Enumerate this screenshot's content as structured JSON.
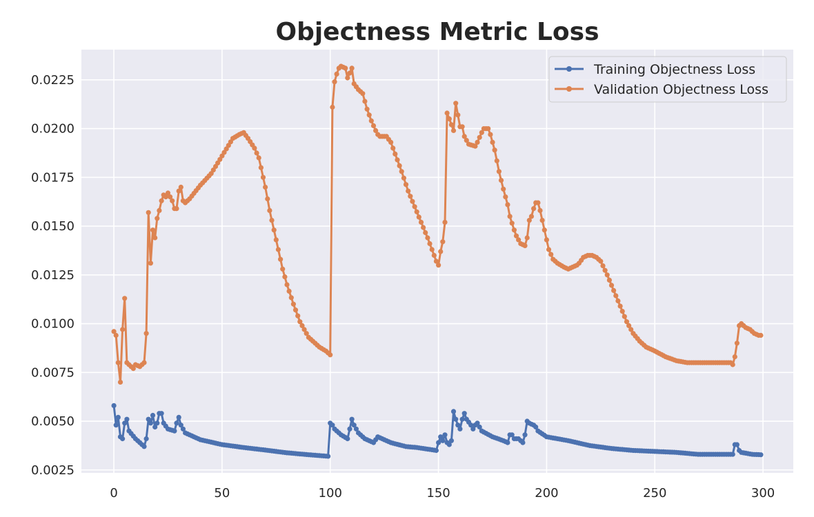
{
  "chart_data": {
    "type": "line",
    "title": "Objectness Metric Loss",
    "xlabel": "",
    "ylabel": "",
    "xlim": [
      -15,
      314
    ],
    "ylim": [
      0.00235,
      0.02405
    ],
    "xticks": [
      0,
      50,
      100,
      150,
      200,
      250,
      300
    ],
    "xtick_labels": [
      "0",
      "50",
      "100",
      "150",
      "200",
      "250",
      "300"
    ],
    "yticks": [
      0.0025,
      0.005,
      0.0075,
      0.01,
      0.0125,
      0.015,
      0.0175,
      0.02,
      0.0225
    ],
    "ytick_labels": [
      "0.0025",
      "0.0050",
      "0.0075",
      "0.0100",
      "0.0125",
      "0.0150",
      "0.0175",
      "0.0200",
      "0.0225"
    ],
    "grid": true,
    "legend_position": "top-right",
    "series": [
      {
        "name": "Training Objectness Loss",
        "color": "#4c72b0",
        "keypoints": [
          [
            0,
            0.0058
          ],
          [
            1,
            0.0048
          ],
          [
            2,
            0.0052
          ],
          [
            3,
            0.0042
          ],
          [
            4,
            0.0041
          ],
          [
            5,
            0.0049
          ],
          [
            6,
            0.0051
          ],
          [
            7,
            0.0045
          ],
          [
            10,
            0.0041
          ],
          [
            14,
            0.0037
          ],
          [
            15,
            0.0041
          ],
          [
            16,
            0.0051
          ],
          [
            17,
            0.0049
          ],
          [
            18,
            0.0053
          ],
          [
            19,
            0.0047
          ],
          [
            20,
            0.0049
          ],
          [
            21,
            0.0054
          ],
          [
            22,
            0.0054
          ],
          [
            23,
            0.0049
          ],
          [
            25,
            0.0046
          ],
          [
            28,
            0.0045
          ],
          [
            29,
            0.0049
          ],
          [
            30,
            0.0052
          ],
          [
            31,
            0.0048
          ],
          [
            33,
            0.0044
          ],
          [
            35,
            0.0043
          ],
          [
            40,
            0.00405
          ],
          [
            50,
            0.0038
          ],
          [
            60,
            0.00365
          ],
          [
            70,
            0.00352
          ],
          [
            80,
            0.00338
          ],
          [
            90,
            0.00328
          ],
          [
            99,
            0.0032
          ],
          [
            100,
            0.0049
          ],
          [
            101,
            0.0048
          ],
          [
            102,
            0.0046
          ],
          [
            105,
            0.0043
          ],
          [
            108,
            0.0041
          ],
          [
            110,
            0.0051
          ],
          [
            111,
            0.0048
          ],
          [
            113,
            0.0044
          ],
          [
            116,
            0.0041
          ],
          [
            120,
            0.0039
          ],
          [
            122,
            0.0042
          ],
          [
            124,
            0.0041
          ],
          [
            126,
            0.004
          ],
          [
            128,
            0.0039
          ],
          [
            135,
            0.0037
          ],
          [
            140,
            0.00365
          ],
          [
            149,
            0.0035
          ],
          [
            150,
            0.0039
          ],
          [
            151,
            0.0042
          ],
          [
            152,
            0.004
          ],
          [
            153,
            0.0043
          ],
          [
            154,
            0.0039
          ],
          [
            155,
            0.0038
          ],
          [
            156,
            0.004
          ],
          [
            157,
            0.0055
          ],
          [
            158,
            0.0051
          ],
          [
            159,
            0.0048
          ],
          [
            160,
            0.0046
          ],
          [
            161,
            0.0051
          ],
          [
            162,
            0.0054
          ],
          [
            163,
            0.0051
          ],
          [
            165,
            0.0048
          ],
          [
            166,
            0.0046
          ],
          [
            167,
            0.0048
          ],
          [
            168,
            0.0049
          ],
          [
            169,
            0.0047
          ],
          [
            170,
            0.0045
          ],
          [
            175,
            0.0042
          ],
          [
            180,
            0.004
          ],
          [
            182,
            0.0039
          ],
          [
            183,
            0.0043
          ],
          [
            184,
            0.0043
          ],
          [
            185,
            0.0041
          ],
          [
            187,
            0.0041
          ],
          [
            189,
            0.0039
          ],
          [
            190,
            0.0043
          ],
          [
            191,
            0.005
          ],
          [
            192,
            0.0049
          ],
          [
            194,
            0.0048
          ],
          [
            195,
            0.0047
          ],
          [
            196,
            0.0045
          ],
          [
            200,
            0.0042
          ],
          [
            210,
            0.004
          ],
          [
            220,
            0.00375
          ],
          [
            230,
            0.0036
          ],
          [
            240,
            0.0035
          ],
          [
            250,
            0.00345
          ],
          [
            260,
            0.0034
          ],
          [
            270,
            0.0033
          ],
          [
            280,
            0.0033
          ],
          [
            286,
            0.0033
          ],
          [
            287,
            0.0038
          ],
          [
            288,
            0.0038
          ],
          [
            289,
            0.0035
          ],
          [
            290,
            0.0034
          ],
          [
            295,
            0.0033
          ],
          [
            299,
            0.00328
          ]
        ]
      },
      {
        "name": "Validation Objectness Loss",
        "color": "#dd8452",
        "keypoints": [
          [
            0,
            0.0096
          ],
          [
            1,
            0.0094
          ],
          [
            2,
            0.008
          ],
          [
            3,
            0.007
          ],
          [
            4,
            0.0097
          ],
          [
            5,
            0.0113
          ],
          [
            6,
            0.008
          ],
          [
            7,
            0.0079
          ],
          [
            9,
            0.0077
          ],
          [
            10,
            0.0079
          ],
          [
            12,
            0.0078
          ],
          [
            14,
            0.008
          ],
          [
            15,
            0.0095
          ],
          [
            16,
            0.0157
          ],
          [
            17,
            0.0131
          ],
          [
            18,
            0.0148
          ],
          [
            19,
            0.0144
          ],
          [
            20,
            0.0154
          ],
          [
            21,
            0.0158
          ],
          [
            22,
            0.0163
          ],
          [
            23,
            0.0166
          ],
          [
            24,
            0.0165
          ],
          [
            25,
            0.0167
          ],
          [
            27,
            0.0163
          ],
          [
            28,
            0.0159
          ],
          [
            29,
            0.0159
          ],
          [
            30,
            0.0168
          ],
          [
            31,
            0.017
          ],
          [
            32,
            0.0163
          ],
          [
            33,
            0.0162
          ],
          [
            35,
            0.0164
          ],
          [
            40,
            0.0171
          ],
          [
            45,
            0.0177
          ],
          [
            50,
            0.0186
          ],
          [
            55,
            0.0195
          ],
          [
            58,
            0.0197
          ],
          [
            60,
            0.0198
          ],
          [
            62,
            0.0195
          ],
          [
            65,
            0.019
          ],
          [
            67,
            0.0185
          ],
          [
            70,
            0.017
          ],
          [
            72,
            0.0158
          ],
          [
            75,
            0.0143
          ],
          [
            78,
            0.0128
          ],
          [
            80,
            0.012
          ],
          [
            83,
            0.011
          ],
          [
            86,
            0.0101
          ],
          [
            90,
            0.0093
          ],
          [
            95,
            0.0088
          ],
          [
            98,
            0.0086
          ],
          [
            100,
            0.0084
          ],
          [
            101,
            0.0211
          ],
          [
            102,
            0.0224
          ],
          [
            103,
            0.0228
          ],
          [
            104,
            0.0231
          ],
          [
            105,
            0.0232
          ],
          [
            107,
            0.0231
          ],
          [
            108,
            0.0226
          ],
          [
            110,
            0.0231
          ],
          [
            111,
            0.0223
          ],
          [
            113,
            0.022
          ],
          [
            115,
            0.0218
          ],
          [
            117,
            0.021
          ],
          [
            119,
            0.0204
          ],
          [
            121,
            0.0199
          ],
          [
            122,
            0.0197
          ],
          [
            123,
            0.0196
          ],
          [
            126,
            0.0196
          ],
          [
            128,
            0.0193
          ],
          [
            130,
            0.0187
          ],
          [
            133,
            0.0178
          ],
          [
            136,
            0.0168
          ],
          [
            139,
            0.016
          ],
          [
            142,
            0.0152
          ],
          [
            145,
            0.0144
          ],
          [
            148,
            0.0135
          ],
          [
            149,
            0.0132
          ],
          [
            150,
            0.013
          ],
          [
            151,
            0.0137
          ],
          [
            152,
            0.0142
          ],
          [
            153,
            0.0152
          ],
          [
            154,
            0.0208
          ],
          [
            155,
            0.0205
          ],
          [
            156,
            0.0202
          ],
          [
            157,
            0.0199
          ],
          [
            158,
            0.0213
          ],
          [
            159,
            0.0207
          ],
          [
            160,
            0.0201
          ],
          [
            161,
            0.0201
          ],
          [
            162,
            0.0196
          ],
          [
            164,
            0.0192
          ],
          [
            167,
            0.0191
          ],
          [
            168,
            0.0193
          ],
          [
            170,
            0.0198
          ],
          [
            171,
            0.02
          ],
          [
            173,
            0.02
          ],
          [
            174,
            0.0197
          ],
          [
            176,
            0.0189
          ],
          [
            178,
            0.0178
          ],
          [
            180,
            0.0169
          ],
          [
            182,
            0.0161
          ],
          [
            183,
            0.0155
          ],
          [
            185,
            0.0148
          ],
          [
            186,
            0.0145
          ],
          [
            188,
            0.0141
          ],
          [
            190,
            0.014
          ],
          [
            191,
            0.0144
          ],
          [
            192,
            0.0153
          ],
          [
            193,
            0.0155
          ],
          [
            194,
            0.0159
          ],
          [
            195,
            0.0162
          ],
          [
            196,
            0.0162
          ],
          [
            197,
            0.0158
          ],
          [
            199,
            0.0148
          ],
          [
            201,
            0.0138
          ],
          [
            203,
            0.0133
          ],
          [
            205,
            0.0131
          ],
          [
            208,
            0.0129
          ],
          [
            210,
            0.0128
          ],
          [
            214,
            0.013
          ],
          [
            215,
            0.0131
          ],
          [
            217,
            0.0134
          ],
          [
            219,
            0.0135
          ],
          [
            221,
            0.0135
          ],
          [
            223,
            0.0134
          ],
          [
            225,
            0.0132
          ],
          [
            228,
            0.0125
          ],
          [
            231,
            0.0117
          ],
          [
            234,
            0.0109
          ],
          [
            237,
            0.0101
          ],
          [
            240,
            0.0095
          ],
          [
            243,
            0.0091
          ],
          [
            246,
            0.0088
          ],
          [
            250,
            0.0086
          ],
          [
            255,
            0.0083
          ],
          [
            260,
            0.0081
          ],
          [
            265,
            0.008
          ],
          [
            270,
            0.008
          ],
          [
            285,
            0.008
          ],
          [
            286,
            0.0079
          ],
          [
            287,
            0.0083
          ],
          [
            288,
            0.009
          ],
          [
            289,
            0.0099
          ],
          [
            290,
            0.01
          ],
          [
            292,
            0.0098
          ],
          [
            294,
            0.0097
          ],
          [
            296,
            0.0095
          ],
          [
            298,
            0.0094
          ],
          [
            299,
            0.0094
          ]
        ]
      }
    ]
  }
}
